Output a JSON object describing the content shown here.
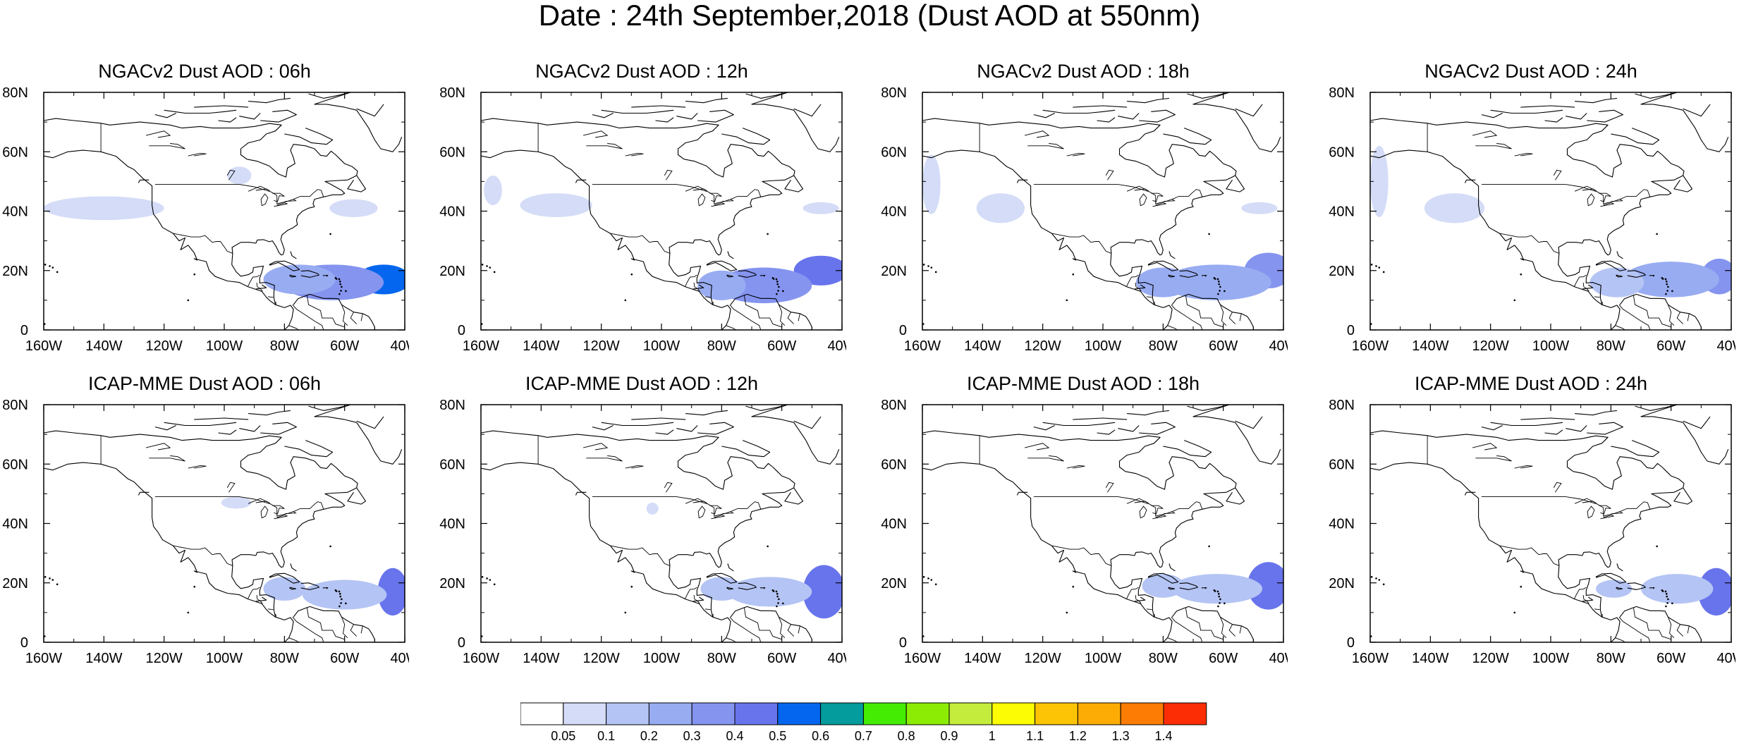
{
  "title": "Date : 24th September,2018 (Dust AOD at 550nm)",
  "axes": {
    "x_ticks": [
      "160W",
      "140W",
      "120W",
      "100W",
      "80W",
      "60W",
      "40W"
    ],
    "y_ticks": [
      "80N",
      "60N",
      "40N",
      "20N",
      "0"
    ],
    "lon_range": [
      -160,
      -40
    ],
    "lat_range": [
      0,
      80
    ]
  },
  "panels": [
    {
      "title": "NGACv2 Dust AOD : 06h",
      "fields": [
        {
          "lon": -47,
          "lat": 17,
          "rlon": 9,
          "rlat": 5,
          "v": 0.5
        },
        {
          "lon": -64,
          "lat": 16,
          "rlon": 17,
          "rlat": 6,
          "v": 0.35
        },
        {
          "lon": -75,
          "lat": 17,
          "rlon": 12,
          "rlat": 5,
          "v": 0.2
        },
        {
          "lon": -140,
          "lat": 41,
          "rlon": 20,
          "rlat": 4,
          "v": 0.07
        },
        {
          "lon": -57,
          "lat": 41,
          "rlon": 8,
          "rlat": 3,
          "v": 0.07
        },
        {
          "lon": -95,
          "lat": 52,
          "rlon": 4,
          "rlat": 3,
          "v": 0.07
        }
      ]
    },
    {
      "title": "NGACv2 Dust AOD : 12h",
      "fields": [
        {
          "lon": -47,
          "lat": 20,
          "rlon": 9,
          "rlat": 5,
          "v": 0.4
        },
        {
          "lon": -66,
          "lat": 15,
          "rlon": 16,
          "rlat": 6,
          "v": 0.3
        },
        {
          "lon": -80,
          "lat": 15,
          "rlon": 8,
          "rlat": 5,
          "v": 0.2
        },
        {
          "lon": -135,
          "lat": 42,
          "rlon": 12,
          "rlat": 4,
          "v": 0.07
        },
        {
          "lon": -156,
          "lat": 47,
          "rlon": 3,
          "rlat": 5,
          "v": 0.07
        },
        {
          "lon": -47,
          "lat": 41,
          "rlon": 6,
          "rlat": 2,
          "v": 0.07
        }
      ]
    },
    {
      "title": "NGACv2 Dust AOD : 18h",
      "fields": [
        {
          "lon": -45,
          "lat": 20,
          "rlon": 8,
          "rlat": 6,
          "v": 0.35
        },
        {
          "lon": -62,
          "lat": 16,
          "rlon": 18,
          "rlat": 6,
          "v": 0.25
        },
        {
          "lon": -80,
          "lat": 16,
          "rlon": 9,
          "rlat": 5,
          "v": 0.2
        },
        {
          "lon": -134,
          "lat": 41,
          "rlon": 8,
          "rlat": 5,
          "v": 0.07
        },
        {
          "lon": -157,
          "lat": 49,
          "rlon": 3,
          "rlat": 10,
          "v": 0.07
        },
        {
          "lon": -48,
          "lat": 41,
          "rlon": 6,
          "rlat": 2,
          "v": 0.07
        }
      ]
    },
    {
      "title": "NGACv2 Dust AOD : 24h",
      "fields": [
        {
          "lon": -44,
          "lat": 18,
          "rlon": 6,
          "rlat": 6,
          "v": 0.3
        },
        {
          "lon": -60,
          "lat": 17,
          "rlon": 16,
          "rlat": 6,
          "v": 0.2
        },
        {
          "lon": -78,
          "lat": 16,
          "rlon": 9,
          "rlat": 5,
          "v": 0.15
        },
        {
          "lon": -132,
          "lat": 41,
          "rlon": 10,
          "rlat": 5,
          "v": 0.07
        },
        {
          "lon": -157,
          "lat": 50,
          "rlon": 3,
          "rlat": 12,
          "v": 0.07
        }
      ]
    },
    {
      "title": "ICAP-MME Dust AOD : 06h",
      "fields": [
        {
          "lon": -44,
          "lat": 17,
          "rlon": 5,
          "rlat": 8,
          "v": 0.4
        },
        {
          "lon": -60,
          "lat": 16,
          "rlon": 14,
          "rlat": 5,
          "v": 0.15
        },
        {
          "lon": -80,
          "lat": 18,
          "rlon": 7,
          "rlat": 4,
          "v": 0.15
        },
        {
          "lon": -96,
          "lat": 47,
          "rlon": 5,
          "rlat": 2,
          "v": 0.07
        }
      ]
    },
    {
      "title": "ICAP-MME Dust AOD : 12h",
      "fields": [
        {
          "lon": -46,
          "lat": 17,
          "rlon": 7,
          "rlat": 9,
          "v": 0.4
        },
        {
          "lon": -64,
          "lat": 17,
          "rlon": 14,
          "rlat": 5,
          "v": 0.15
        },
        {
          "lon": -80,
          "lat": 18,
          "rlon": 7,
          "rlat": 4,
          "v": 0.15
        },
        {
          "lon": -103,
          "lat": 45,
          "rlon": 2,
          "rlat": 2,
          "v": 0.07
        }
      ]
    },
    {
      "title": "ICAP-MME Dust AOD : 18h",
      "fields": [
        {
          "lon": -45,
          "lat": 19,
          "rlon": 7,
          "rlat": 8,
          "v": 0.4
        },
        {
          "lon": -62,
          "lat": 18,
          "rlon": 15,
          "rlat": 5,
          "v": 0.15
        },
        {
          "lon": -80,
          "lat": 19,
          "rlon": 7,
          "rlat": 4,
          "v": 0.15
        }
      ]
    },
    {
      "title": "ICAP-MME Dust AOD : 24h",
      "fields": [
        {
          "lon": -45,
          "lat": 17,
          "rlon": 6,
          "rlat": 8,
          "v": 0.4
        },
        {
          "lon": -58,
          "lat": 18,
          "rlon": 12,
          "rlat": 5,
          "v": 0.15
        },
        {
          "lon": -79,
          "lat": 18,
          "rlon": 6,
          "rlat": 3,
          "v": 0.15
        }
      ]
    }
  ],
  "colorbar": {
    "labels": [
      "0.05",
      "0.1",
      "0.2",
      "0.3",
      "0.4",
      "0.5",
      "0.6",
      "0.7",
      "0.8",
      "0.9",
      "1",
      "1.1",
      "1.2",
      "1.3",
      "1.4"
    ],
    "thresholds": [
      0.05,
      0.1,
      0.2,
      0.3,
      0.4,
      0.5,
      0.6,
      0.7,
      0.8,
      0.9,
      1,
      1.1,
      1.2,
      1.3,
      1.4
    ],
    "colors": [
      "#ffffff",
      "#d4dcf7",
      "#b4c4f4",
      "#98acf2",
      "#8494ef",
      "#6874ec",
      "#0466ee",
      "#049c9c",
      "#44ec04",
      "#8cec04",
      "#c4ec3c",
      "#fcfc04",
      "#fcc404",
      "#fcac04",
      "#fc7c04",
      "#fc2c04"
    ]
  },
  "outline_color": "#000000"
}
